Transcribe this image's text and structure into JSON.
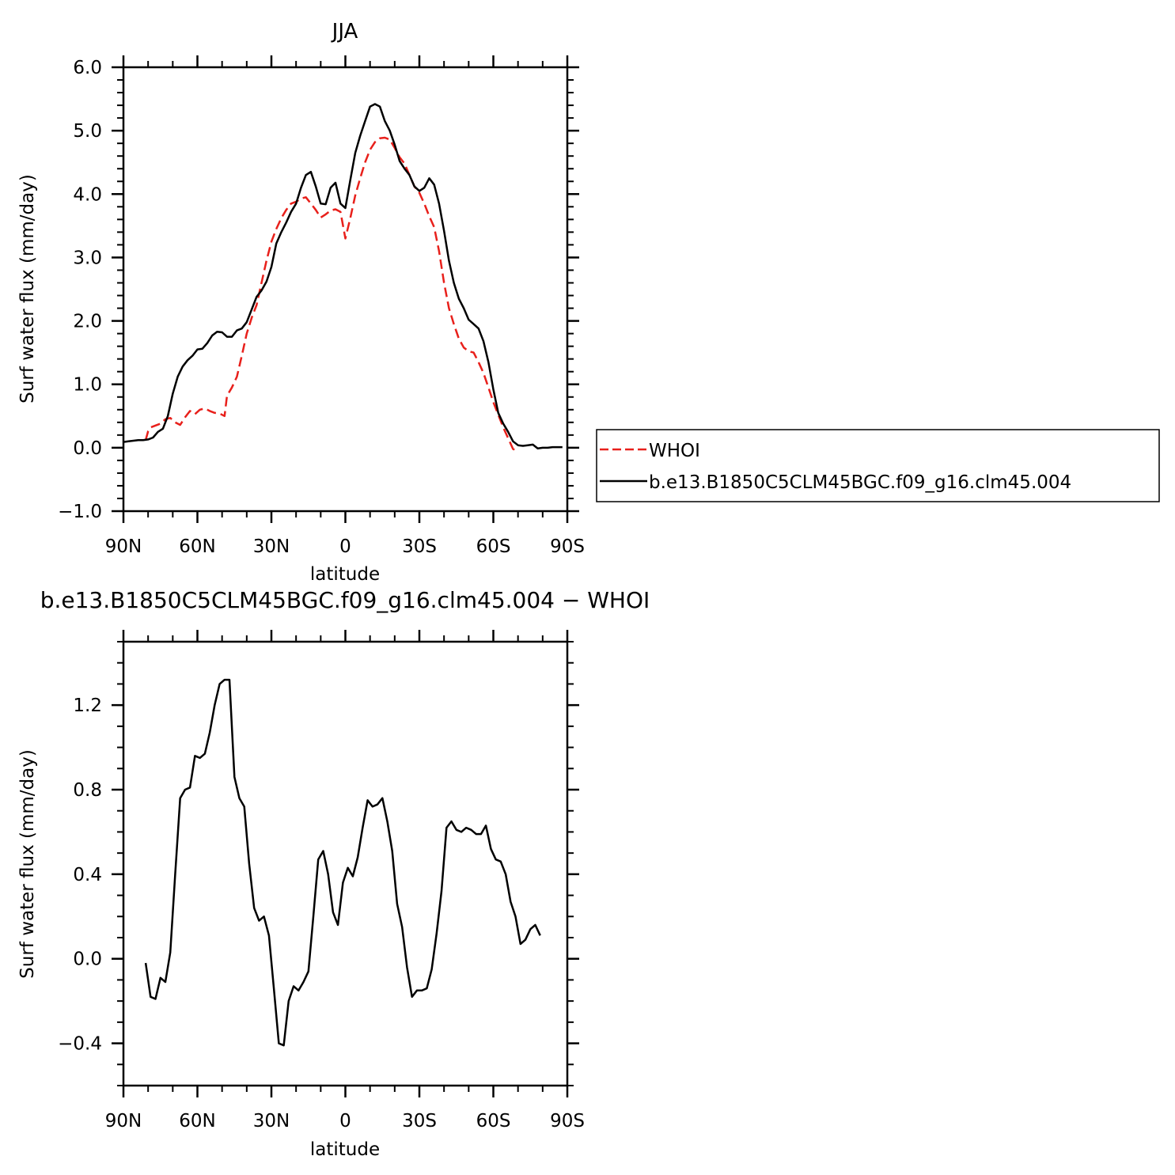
{
  "chart_data": [
    {
      "type": "line",
      "title": "JJA",
      "xlabel": "latitude",
      "ylabel": "Surf water flux (mm/day)",
      "xlim": [
        90,
        -90
      ],
      "ylim": [
        -1.0,
        6.0
      ],
      "x_ticks": [
        90,
        60,
        30,
        0,
        -30,
        -60,
        -90
      ],
      "x_tick_labels": [
        "90N",
        "60N",
        "30N",
        "0",
        "30S",
        "60S",
        "90S"
      ],
      "y_ticks": [
        -1.0,
        0.0,
        1.0,
        2.0,
        3.0,
        4.0,
        5.0,
        6.0
      ],
      "y_tick_labels": [
        "−1.0",
        "0.0",
        "1.0",
        "2.0",
        "3.0",
        "4.0",
        "5.0",
        "6.0"
      ],
      "legend_position": "right",
      "series": [
        {
          "name": "WHOI",
          "color": "#e8201b",
          "dash": true,
          "points": [
            [
              81,
              0.12
            ],
            [
              80,
              0.26
            ],
            [
              79,
              0.32
            ],
            [
              77,
              0.35
            ],
            [
              75,
              0.38
            ],
            [
              73,
              0.45
            ],
            [
              71,
              0.47
            ],
            [
              69,
              0.4
            ],
            [
              67,
              0.36
            ],
            [
              65,
              0.48
            ],
            [
              63,
              0.58
            ],
            [
              61,
              0.53
            ],
            [
              59,
              0.6
            ],
            [
              57,
              0.62
            ],
            [
              55,
              0.58
            ],
            [
              53,
              0.55
            ],
            [
              51,
              0.54
            ],
            [
              49,
              0.5
            ],
            [
              48,
              0.82
            ],
            [
              46,
              0.95
            ],
            [
              44,
              1.12
            ],
            [
              42,
              1.45
            ],
            [
              40,
              1.8
            ],
            [
              38,
              2.05
            ],
            [
              36,
              2.25
            ],
            [
              34,
              2.6
            ],
            [
              32,
              2.95
            ],
            [
              30,
              3.25
            ],
            [
              28,
              3.45
            ],
            [
              26,
              3.62
            ],
            [
              24,
              3.75
            ],
            [
              22,
              3.85
            ],
            [
              20,
              3.88
            ],
            [
              18,
              3.93
            ],
            [
              16,
              3.95
            ],
            [
              14,
              3.85
            ],
            [
              12,
              3.75
            ],
            [
              10,
              3.63
            ],
            [
              8,
              3.68
            ],
            [
              6,
              3.74
            ],
            [
              4,
              3.76
            ],
            [
              2,
              3.72
            ],
            [
              0,
              3.3
            ],
            [
              -2,
              3.62
            ],
            [
              -4,
              3.98
            ],
            [
              -6,
              4.25
            ],
            [
              -8,
              4.5
            ],
            [
              -10,
              4.7
            ],
            [
              -12,
              4.82
            ],
            [
              -14,
              4.88
            ],
            [
              -16,
              4.89
            ],
            [
              -18,
              4.86
            ],
            [
              -20,
              4.73
            ],
            [
              -22,
              4.58
            ],
            [
              -24,
              4.48
            ],
            [
              -26,
              4.3
            ],
            [
              -28,
              4.12
            ],
            [
              -30,
              4.02
            ],
            [
              -32,
              3.85
            ],
            [
              -34,
              3.65
            ],
            [
              -36,
              3.48
            ],
            [
              -38,
              3.1
            ],
            [
              -40,
              2.6
            ],
            [
              -42,
              2.2
            ],
            [
              -44,
              1.95
            ],
            [
              -46,
              1.72
            ],
            [
              -48,
              1.58
            ],
            [
              -50,
              1.52
            ],
            [
              -52,
              1.5
            ],
            [
              -54,
              1.35
            ],
            [
              -56,
              1.18
            ],
            [
              -58,
              0.95
            ],
            [
              -60,
              0.72
            ],
            [
              -62,
              0.52
            ],
            [
              -64,
              0.32
            ],
            [
              -66,
              0.15
            ],
            [
              -68,
              -0.02
            ],
            [
              -70,
              -0.05
            ]
          ]
        },
        {
          "name": "b.e13.B1850C5CLM45BGC.f09_g16.clm45.004",
          "color": "#000000",
          "dash": false,
          "points": [
            [
              90,
              0.09
            ],
            [
              88,
              0.1
            ],
            [
              86,
              0.11
            ],
            [
              84,
              0.12
            ],
            [
              82,
              0.12
            ],
            [
              80,
              0.13
            ],
            [
              78,
              0.16
            ],
            [
              76,
              0.25
            ],
            [
              74,
              0.3
            ],
            [
              72,
              0.5
            ],
            [
              70,
              0.85
            ],
            [
              68,
              1.12
            ],
            [
              66,
              1.28
            ],
            [
              64,
              1.38
            ],
            [
              62,
              1.45
            ],
            [
              60,
              1.55
            ],
            [
              58,
              1.56
            ],
            [
              56,
              1.65
            ],
            [
              54,
              1.77
            ],
            [
              52,
              1.83
            ],
            [
              50,
              1.82
            ],
            [
              48,
              1.75
            ],
            [
              46,
              1.75
            ],
            [
              44,
              1.85
            ],
            [
              42,
              1.88
            ],
            [
              40,
              1.98
            ],
            [
              38,
              2.18
            ],
            [
              36,
              2.38
            ],
            [
              34,
              2.48
            ],
            [
              32,
              2.62
            ],
            [
              30,
              2.85
            ],
            [
              28,
              3.22
            ],
            [
              26,
              3.4
            ],
            [
              24,
              3.55
            ],
            [
              22,
              3.72
            ],
            [
              20,
              3.85
            ],
            [
              18,
              4.1
            ],
            [
              16,
              4.3
            ],
            [
              14,
              4.35
            ],
            [
              12,
              4.12
            ],
            [
              10,
              3.85
            ],
            [
              8,
              3.84
            ],
            [
              6,
              4.1
            ],
            [
              4,
              4.18
            ],
            [
              2,
              3.85
            ],
            [
              0,
              3.78
            ],
            [
              -2,
              4.22
            ],
            [
              -4,
              4.65
            ],
            [
              -6,
              4.92
            ],
            [
              -8,
              5.15
            ],
            [
              -10,
              5.38
            ],
            [
              -12,
              5.42
            ],
            [
              -14,
              5.38
            ],
            [
              -16,
              5.15
            ],
            [
              -18,
              5.0
            ],
            [
              -20,
              4.78
            ],
            [
              -22,
              4.52
            ],
            [
              -24,
              4.4
            ],
            [
              -26,
              4.3
            ],
            [
              -28,
              4.12
            ],
            [
              -30,
              4.05
            ],
            [
              -32,
              4.1
            ],
            [
              -34,
              4.25
            ],
            [
              -36,
              4.15
            ],
            [
              -38,
              3.85
            ],
            [
              -40,
              3.42
            ],
            [
              -42,
              2.95
            ],
            [
              -44,
              2.6
            ],
            [
              -46,
              2.35
            ],
            [
              -48,
              2.2
            ],
            [
              -50,
              2.02
            ],
            [
              -52,
              1.95
            ],
            [
              -54,
              1.88
            ],
            [
              -56,
              1.68
            ],
            [
              -58,
              1.35
            ],
            [
              -60,
              0.92
            ],
            [
              -62,
              0.55
            ],
            [
              -64,
              0.38
            ],
            [
              -66,
              0.25
            ],
            [
              -68,
              0.1
            ],
            [
              -70,
              0.04
            ],
            [
              -72,
              0.03
            ],
            [
              -74,
              0.04
            ],
            [
              -76,
              0.05
            ],
            [
              -78,
              -0.01
            ],
            [
              -80,
              0.0
            ],
            [
              -82,
              0.0
            ],
            [
              -84,
              0.01
            ],
            [
              -86,
              0.01
            ],
            [
              -88,
              0.01
            ]
          ]
        }
      ]
    },
    {
      "type": "line",
      "title": "b.e13.B1850C5CLM45BGC.f09_g16.clm45.004 − WHOI",
      "xlabel": "latitude",
      "ylabel": "Surf water flux (mm/day)",
      "xlim": [
        90,
        -90
      ],
      "ylim": [
        -0.6,
        1.5
      ],
      "x_ticks": [
        90,
        60,
        30,
        0,
        -30,
        -60,
        -90
      ],
      "x_tick_labels": [
        "90N",
        "60N",
        "30N",
        "0",
        "30S",
        "60S",
        "90S"
      ],
      "y_ticks": [
        -0.4,
        0.0,
        0.4,
        0.8,
        1.2
      ],
      "y_tick_labels": [
        "−0.4",
        "0.0",
        "0.4",
        "0.8",
        "1.2"
      ],
      "series": [
        {
          "color": "#000000",
          "dash": false,
          "points": [
            [
              81,
              -0.02
            ],
            [
              79,
              -0.18
            ],
            [
              77,
              -0.19
            ],
            [
              75,
              -0.09
            ],
            [
              73,
              -0.11
            ],
            [
              71,
              0.03
            ],
            [
              69,
              0.4
            ],
            [
              67,
              0.76
            ],
            [
              65,
              0.8
            ],
            [
              63,
              0.81
            ],
            [
              61,
              0.96
            ],
            [
              59,
              0.95
            ],
            [
              57,
              0.97
            ],
            [
              55,
              1.07
            ],
            [
              53,
              1.2
            ],
            [
              51,
              1.3
            ],
            [
              49,
              1.32
            ],
            [
              47,
              1.32
            ],
            [
              45,
              0.86
            ],
            [
              43,
              0.76
            ],
            [
              41,
              0.72
            ],
            [
              39,
              0.45
            ],
            [
              37,
              0.24
            ],
            [
              35,
              0.18
            ],
            [
              33,
              0.2
            ],
            [
              31,
              0.11
            ],
            [
              29,
              -0.14
            ],
            [
              27,
              -0.4
            ],
            [
              25,
              -0.41
            ],
            [
              23,
              -0.2
            ],
            [
              21,
              -0.13
            ],
            [
              19,
              -0.15
            ],
            [
              17,
              -0.11
            ],
            [
              15,
              -0.06
            ],
            [
              13,
              0.2
            ],
            [
              11,
              0.47
            ],
            [
              9,
              0.51
            ],
            [
              7,
              0.4
            ],
            [
              5,
              0.22
            ],
            [
              3,
              0.16
            ],
            [
              1,
              0.36
            ],
            [
              -1,
              0.43
            ],
            [
              -3,
              0.39
            ],
            [
              -5,
              0.48
            ],
            [
              -7,
              0.62
            ],
            [
              -9,
              0.75
            ],
            [
              -11,
              0.72
            ],
            [
              -13,
              0.73
            ],
            [
              -15,
              0.76
            ],
            [
              -17,
              0.65
            ],
            [
              -19,
              0.51
            ],
            [
              -21,
              0.26
            ],
            [
              -23,
              0.15
            ],
            [
              -25,
              -0.04
            ],
            [
              -27,
              -0.18
            ],
            [
              -29,
              -0.15
            ],
            [
              -31,
              -0.15
            ],
            [
              -33,
              -0.14
            ],
            [
              -35,
              -0.05
            ],
            [
              -37,
              0.12
            ],
            [
              -39,
              0.32
            ],
            [
              -41,
              0.62
            ],
            [
              -43,
              0.65
            ],
            [
              -45,
              0.61
            ],
            [
              -47,
              0.6
            ],
            [
              -49,
              0.62
            ],
            [
              -51,
              0.61
            ],
            [
              -53,
              0.59
            ],
            [
              -55,
              0.59
            ],
            [
              -57,
              0.63
            ],
            [
              -59,
              0.52
            ],
            [
              -61,
              0.47
            ],
            [
              -63,
              0.46
            ],
            [
              -65,
              0.4
            ],
            [
              -67,
              0.27
            ],
            [
              -69,
              0.2
            ],
            [
              -71,
              0.07
            ],
            [
              -73,
              0.09
            ],
            [
              -75,
              0.14
            ],
            [
              -77,
              0.16
            ],
            [
              -79,
              0.11
            ]
          ]
        }
      ]
    }
  ]
}
